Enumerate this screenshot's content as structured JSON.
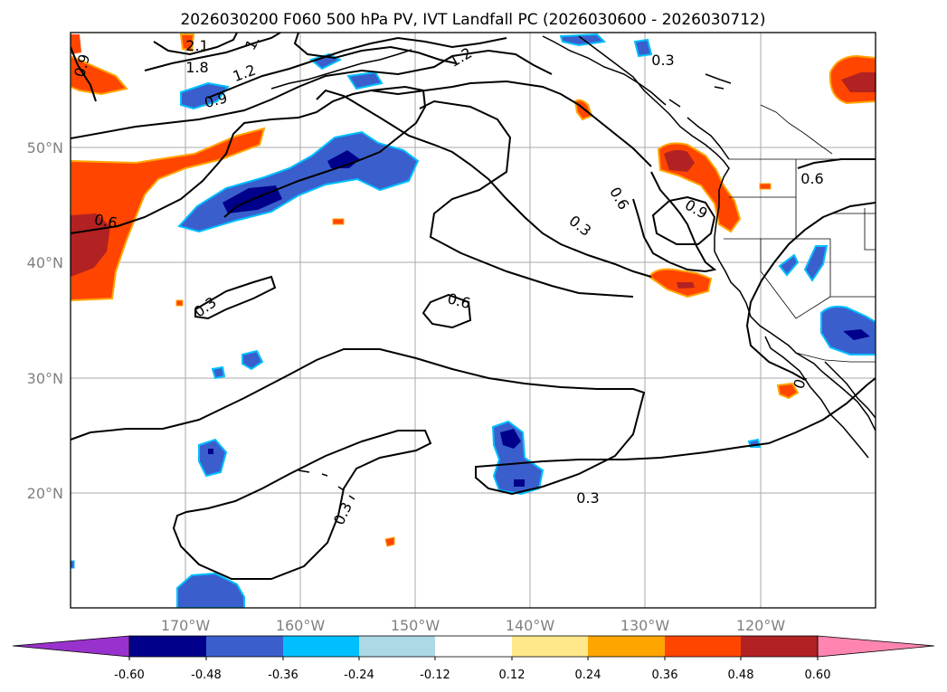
{
  "title": "2026030200 F060 500 hPa PV, IVT Landfall PC (2026030600 - 2026030712)",
  "map": {
    "lat_labels": [
      "50°N",
      "40°N",
      "30°N",
      "20°N"
    ],
    "lat_values": [
      50,
      40,
      30,
      20
    ],
    "lon_labels": [
      "170°W",
      "160°W",
      "150°W",
      "140°W",
      "130°W",
      "120°W"
    ],
    "lon_values": [
      -170,
      -160,
      -150,
      -140,
      -130,
      -120
    ],
    "lat_range": [
      10,
      60
    ],
    "lon_range": [
      -180,
      -110
    ],
    "contour_labels": [
      "2.1",
      "1.8",
      "1.2",
      "1.2",
      "1.",
      "0.9",
      "0.9",
      "0.3",
      "0.6",
      "0.6",
      "0.3",
      "0.6",
      "0.9",
      "0.3",
      "0.6",
      "0.3",
      "0.3",
      "0."
    ]
  },
  "colorbar": {
    "ticks": [
      "-0.60",
      "-0.48",
      "-0.36",
      "-0.24",
      "-0.12",
      "0.12",
      "0.24",
      "0.36",
      "0.48",
      "0.60"
    ],
    "colors": [
      "#9932cc",
      "#00008b",
      "#3a5fcd",
      "#00bfff",
      "#add8e6",
      "#ffffff",
      "#ffe88a",
      "#ffa500",
      "#ff4500",
      "#b22222",
      "#ff85b0"
    ]
  }
}
